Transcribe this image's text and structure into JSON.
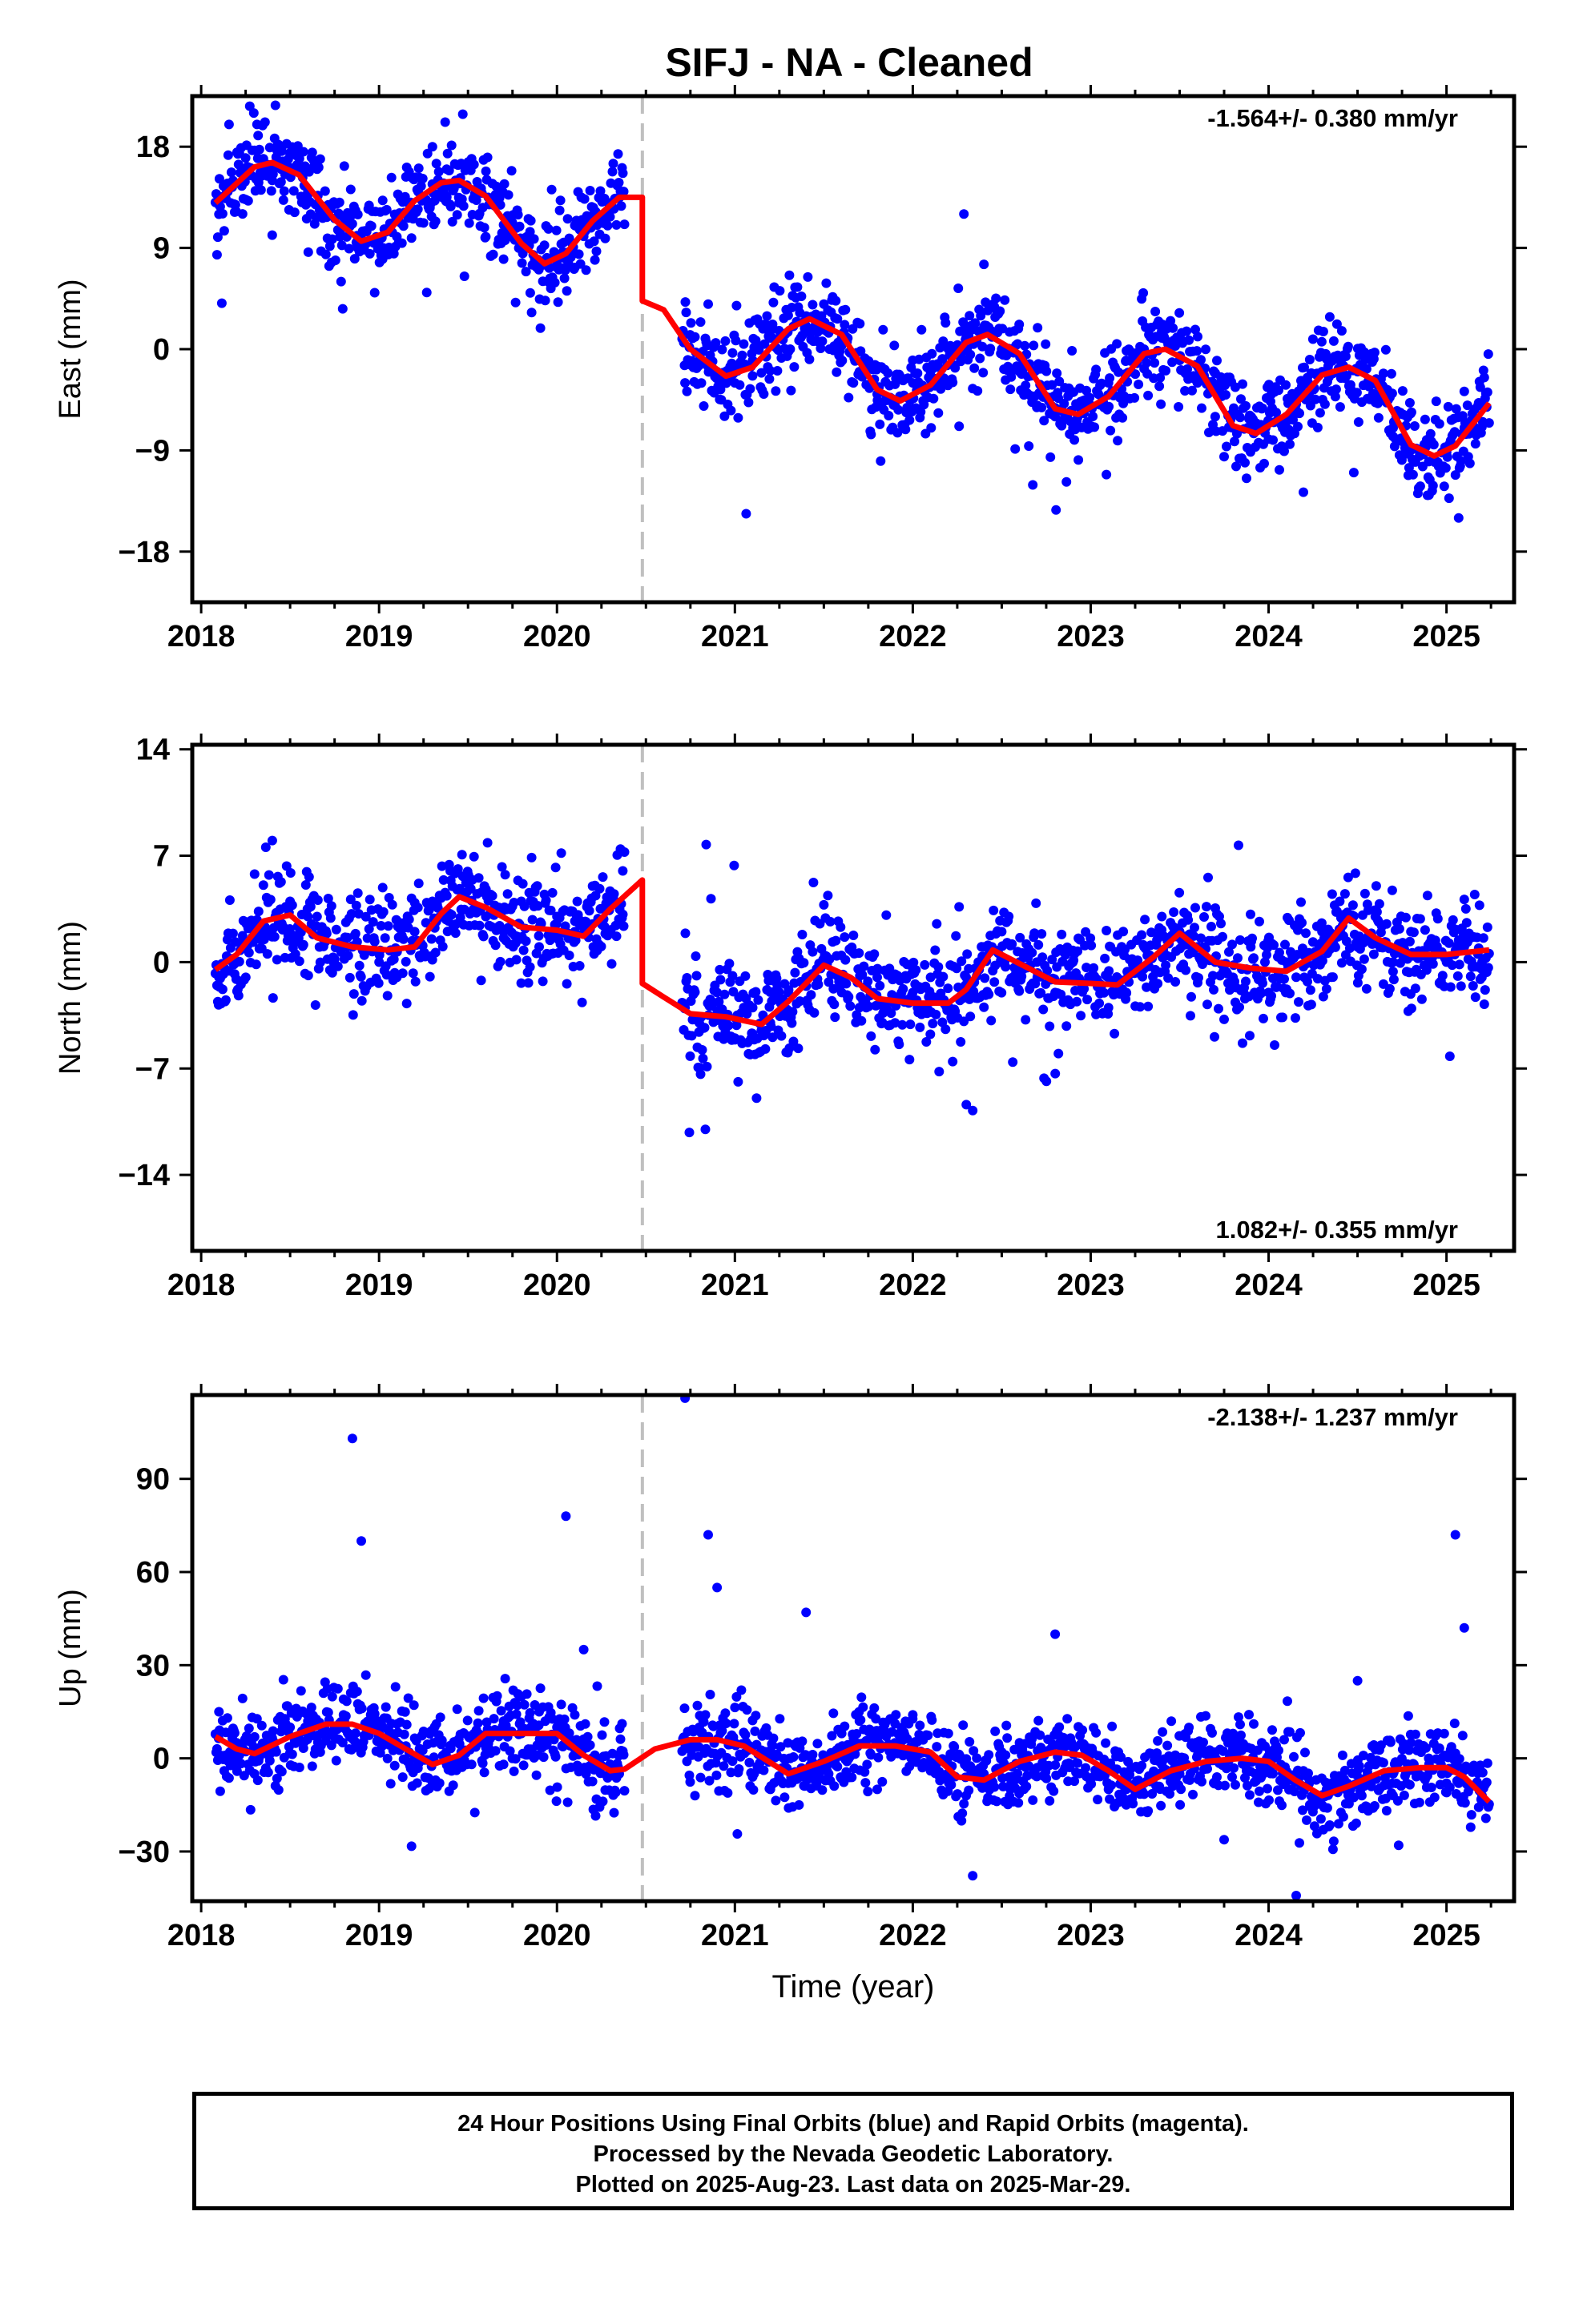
{
  "title": "SIFJ  - NA - Cleaned",
  "colors": {
    "data_points": "#0000ff",
    "model_curve": "#ff0000",
    "offset_line": "#c0c0c0",
    "frame": "#000000"
  },
  "footer": {
    "line1": "24 Hour Positions Using Final Orbits (blue) and Rapid Orbits (magenta).",
    "line2": "Processed by the Nevada Geodetic Laboratory.",
    "line3": "Plotted on 2025-Aug-23. Last data on 2025-Mar-29."
  },
  "chart_data": [
    {
      "type": "scatter",
      "panel": "east",
      "ylabel": "East (mm)",
      "xlabel": "",
      "rate_label": "-1.564+/- 0.380 mm/yr",
      "rate_label_position": "top-right",
      "xlim": [
        2017.95,
        2025.38
      ],
      "ylim": [
        -22.5,
        22.5
      ],
      "xticks": [
        "2018",
        "2019",
        "2020",
        "2021",
        "2022",
        "2023",
        "2024",
        "2025"
      ],
      "yticks": [
        "18",
        "9",
        "0",
        "-9",
        "-18"
      ],
      "ytick_values": [
        18,
        9,
        0,
        -9,
        -18
      ],
      "offset_epoch": 2020.48,
      "data_span": [
        2018.08,
        2025.24
      ],
      "data_gap": [
        2020.38,
        2020.7
      ],
      "series": [
        {
          "role": "model",
          "x": [
            2018.08,
            2018.3,
            2018.4,
            2018.55,
            2018.75,
            2018.9,
            2019.05,
            2019.2,
            2019.35,
            2019.45,
            2019.6,
            2019.8,
            2019.93,
            2020.05,
            2020.2,
            2020.35,
            2020.48,
            2020.48,
            2020.6,
            2020.75,
            2020.95,
            2021.1,
            2021.3,
            2021.42,
            2021.6,
            2021.8,
            2021.93,
            2022.1,
            2022.3,
            2022.42,
            2022.6,
            2022.8,
            2022.93,
            2023.1,
            2023.3,
            2023.42,
            2023.6,
            2023.8,
            2023.93,
            2024.1,
            2024.3,
            2024.45,
            2024.6,
            2024.8,
            2024.93,
            2025.05,
            2025.24
          ],
          "y": [
            13,
            16.2,
            16.6,
            15.5,
            11.5,
            9.6,
            10.4,
            13.2,
            14.8,
            15,
            13.6,
            9.4,
            7.6,
            8.5,
            11.4,
            13.5,
            13.5,
            4.3,
            3.5,
            0,
            -2.4,
            -1.6,
            1.8,
            2.7,
            1.3,
            -3.6,
            -4.6,
            -3.2,
            0.6,
            1.3,
            -0.4,
            -5.3,
            -5.8,
            -4.2,
            -0.4,
            0,
            -1.5,
            -6.8,
            -7.5,
            -5.8,
            -2.3,
            -1.6,
            -2.8,
            -8.5,
            -9.5,
            -8.6,
            -4.8
          ]
        },
        {
          "role": "observations",
          "x": [
            2018.1,
            2018.15,
            2018.25,
            2018.32,
            2018.4,
            2018.45,
            2018.6,
            2018.7,
            2018.78,
            2018.88,
            2018.95,
            2019.02,
            2019.1,
            2019.15,
            2019.22,
            2019.3,
            2019.38,
            2019.45,
            2019.6,
            2019.7,
            2019.8,
            2019.85,
            2019.95,
            2020.05,
            2020.1,
            2020.3,
            2020.37,
            2020.72,
            2020.8,
            2020.85,
            2020.9,
            2021.0,
            2021.1,
            2021.2,
            2021.3,
            2021.4,
            2021.5,
            2021.6,
            2021.7,
            2021.8,
            2021.9,
            2022.0,
            2022.1,
            2022.2,
            2022.3,
            2022.4,
            2022.5,
            2022.6,
            2022.7,
            2022.8,
            2022.9,
            2023.0,
            2023.1,
            2023.2,
            2023.3,
            2023.4,
            2023.5,
            2023.6,
            2023.7,
            2023.8,
            2023.9,
            2024.0,
            2024.1,
            2024.2,
            2024.3,
            2024.4,
            2024.5,
            2024.6,
            2024.7,
            2024.8,
            2024.9,
            2025.0,
            2025.1,
            2025.2
          ],
          "y": [
            12,
            14,
            17,
            19,
            15,
            16,
            14,
            12,
            10,
            9,
            11,
            8,
            10,
            12,
            14,
            18,
            16,
            13,
            10,
            8,
            9,
            5,
            6,
            8,
            11,
            13,
            14,
            -3,
            -1,
            4,
            -2,
            -3,
            -1,
            1,
            3,
            2,
            4,
            1,
            -2,
            -4,
            -5,
            -3,
            -2,
            0,
            1,
            2,
            0,
            -2,
            -5,
            -6,
            -7,
            -5,
            -3,
            -1,
            0,
            1,
            -1,
            -3,
            -6,
            -7,
            -9,
            -8,
            -6,
            -4,
            -2,
            -1,
            -2,
            -4,
            -7,
            -9,
            -10,
            -9,
            -7,
            -5
          ]
        }
      ]
    },
    {
      "type": "scatter",
      "panel": "north",
      "ylabel": "North (mm)",
      "xlabel": "",
      "rate_label": "1.082+/- 0.355 mm/yr",
      "rate_label_position": "bottom-right",
      "xlim": [
        2017.95,
        2025.38
      ],
      "ylim": [
        -19,
        14.3
      ],
      "xticks": [
        "2018",
        "2019",
        "2020",
        "2021",
        "2022",
        "2023",
        "2024",
        "2025"
      ],
      "yticks": [
        "14",
        "7",
        "0",
        "-7",
        "-14"
      ],
      "ytick_values": [
        14,
        7,
        0,
        -7,
        -14
      ],
      "offset_epoch": 2020.48,
      "data_span": [
        2018.08,
        2025.24
      ],
      "data_gap": [
        2020.38,
        2020.7
      ],
      "series": [
        {
          "role": "model",
          "x": [
            2018.08,
            2018.2,
            2018.35,
            2018.5,
            2018.65,
            2018.85,
            2019.05,
            2019.2,
            2019.35,
            2019.45,
            2019.6,
            2019.8,
            2020.0,
            2020.15,
            2020.3,
            2020.48,
            2020.48,
            2020.6,
            2020.75,
            2020.95,
            2021.15,
            2021.3,
            2021.5,
            2021.65,
            2021.8,
            2022.0,
            2022.2,
            2022.3,
            2022.45,
            2022.6,
            2022.8,
            2023.0,
            2023.15,
            2023.35,
            2023.5,
            2023.7,
            2023.9,
            2024.1,
            2024.3,
            2024.45,
            2024.6,
            2024.8,
            2025.0,
            2025.24
          ],
          "y": [
            -0.5,
            0.5,
            2.7,
            3.1,
            1.6,
            1,
            0.8,
            1,
            3.2,
            4.3,
            3.6,
            2.3,
            2.1,
            1.7,
            3.5,
            5.4,
            -1.4,
            -2.3,
            -3.4,
            -3.6,
            -4.1,
            -2.6,
            -0.2,
            -1,
            -2.4,
            -2.7,
            -2.7,
            -1.8,
            0.8,
            -0.1,
            -1.3,
            -1.4,
            -1.5,
            0.3,
            1.9,
            0,
            -0.4,
            -0.6,
            0.7,
            2.9,
            1.6,
            0.5,
            0.5,
            0.8
          ]
        },
        {
          "role": "observations",
          "x": [
            2018.1,
            2018.2,
            2018.3,
            2018.4,
            2018.5,
            2018.6,
            2018.7,
            2018.85,
            2019.0,
            2019.1,
            2019.2,
            2019.3,
            2019.4,
            2019.6,
            2019.7,
            2019.8,
            2019.9,
            2020.0,
            2020.1,
            2020.2,
            2020.3,
            2020.37,
            2020.72,
            2020.8,
            2020.9,
            2021.0,
            2021.1,
            2021.2,
            2021.3,
            2021.4,
            2021.5,
            2021.6,
            2021.7,
            2021.8,
            2021.9,
            2022.0,
            2022.1,
            2022.2,
            2022.3,
            2022.4,
            2022.5,
            2022.6,
            2022.7,
            2022.8,
            2022.9,
            2023.0,
            2023.1,
            2023.2,
            2023.3,
            2023.4,
            2023.5,
            2023.6,
            2023.7,
            2023.8,
            2023.9,
            2024.0,
            2024.1,
            2024.2,
            2024.3,
            2024.4,
            2024.5,
            2024.6,
            2024.7,
            2024.8,
            2024.9,
            2025.0,
            2025.1,
            2025.2
          ],
          "y": [
            -1,
            0,
            2,
            8,
            4,
            3,
            2,
            1,
            0,
            -1,
            2,
            4,
            6,
            3,
            2,
            4,
            1,
            3,
            2,
            5,
            4,
            6,
            -3,
            -4,
            -2,
            -5,
            -3,
            -4,
            -2,
            -1,
            0,
            -2,
            -3,
            -1,
            -4,
            -2,
            -1,
            -3,
            -1,
            1,
            2,
            0,
            -1,
            -2,
            0,
            -1,
            -3,
            -2,
            1,
            3,
            2,
            1,
            0,
            -1,
            1,
            -2,
            0,
            -1,
            2,
            4,
            1,
            3,
            0,
            2,
            1,
            0,
            1,
            0
          ]
        }
      ]
    },
    {
      "type": "scatter",
      "panel": "up",
      "ylabel": "Up (mm)",
      "xlabel": "Time (year)",
      "rate_label": "-2.138+/- 1.237 mm/yr",
      "rate_label_position": "top-right",
      "xlim": [
        2017.95,
        2025.38
      ],
      "ylim": [
        -46,
        117
      ],
      "xticks": [
        "2018",
        "2019",
        "2020",
        "2021",
        "2022",
        "2023",
        "2024",
        "2025"
      ],
      "yticks": [
        "90",
        "60",
        "30",
        "0",
        "-30"
      ],
      "ytick_values": [
        90,
        60,
        30,
        0,
        -30
      ],
      "offset_epoch": 2020.48,
      "data_span": [
        2018.08,
        2025.24
      ],
      "data_gap": [
        2020.38,
        2020.7
      ],
      "series": [
        {
          "role": "model",
          "x": [
            2018.08,
            2018.2,
            2018.3,
            2018.5,
            2018.7,
            2018.85,
            2019.0,
            2019.15,
            2019.3,
            2019.45,
            2019.6,
            2019.75,
            2020.0,
            2020.15,
            2020.3,
            2020.38,
            2020.55,
            2020.75,
            2020.9,
            2021.05,
            2021.3,
            2021.5,
            2021.7,
            2021.9,
            2022.1,
            2022.25,
            2022.4,
            2022.6,
            2022.8,
            2022.95,
            2023.1,
            2023.25,
            2023.45,
            2023.65,
            2023.85,
            2024.0,
            2024.15,
            2024.3,
            2024.45,
            2024.65,
            2024.85,
            2025.0,
            2025.1,
            2025.24
          ],
          "y": [
            7,
            3,
            1.5,
            7,
            11,
            11,
            8,
            3,
            -2,
            1,
            8,
            8,
            8,
            1,
            -4,
            -3.5,
            3,
            6,
            6,
            4,
            -5,
            -1,
            4,
            4,
            2,
            -6,
            -7,
            -1,
            2,
            1,
            -4,
            -10,
            -4,
            -1,
            0,
            -1,
            -7,
            -12,
            -9,
            -4,
            -3,
            -3,
            -6,
            -14
          ]
        },
        {
          "role": "observations",
          "x": [
            2018.1,
            2018.2,
            2018.3,
            2018.4,
            2018.5,
            2018.6,
            2018.7,
            2018.8,
            2018.85,
            2018.9,
            2019.0,
            2019.1,
            2019.2,
            2019.3,
            2019.6,
            2019.7,
            2019.8,
            2019.9,
            2020.0,
            2020.05,
            2020.1,
            2020.15,
            2020.35,
            2020.72,
            2020.8,
            2020.85,
            2020.9,
            2021.0,
            2021.1,
            2021.2,
            2021.3,
            2021.4,
            2021.5,
            2021.6,
            2021.7,
            2021.8,
            2021.9,
            2022.0,
            2022.1,
            2022.2,
            2022.3,
            2022.4,
            2022.5,
            2022.6,
            2022.7,
            2022.8,
            2022.9,
            2023.0,
            2023.1,
            2023.2,
            2023.3,
            2023.4,
            2023.5,
            2023.6,
            2023.7,
            2023.8,
            2023.9,
            2024.0,
            2024.1,
            2024.2,
            2024.3,
            2024.4,
            2024.5,
            2024.6,
            2024.7,
            2024.8,
            2024.9,
            2025.0,
            2025.05,
            2025.1,
            2025.2
          ],
          "y": [
            15,
            5,
            -5,
            2,
            10,
            12,
            9,
            14,
            103,
            70,
            8,
            4,
            0,
            -8,
            6,
            12,
            8,
            15,
            10,
            78,
            14,
            35,
            -5,
            116,
            10,
            72,
            55,
            5,
            -6,
            -10,
            -8,
            47,
            -3,
            8,
            12,
            -10,
            5,
            14,
            -4,
            8,
            -12,
            -5,
            2,
            5,
            -3,
            40,
            4,
            3,
            -10,
            -15,
            -8,
            -2,
            -5,
            3,
            2,
            8,
            -1,
            -3,
            -6,
            -10,
            -15,
            -8,
            25,
            -2,
            -5,
            5,
            0,
            -8,
            72,
            42,
            -12
          ]
        }
      ]
    }
  ]
}
